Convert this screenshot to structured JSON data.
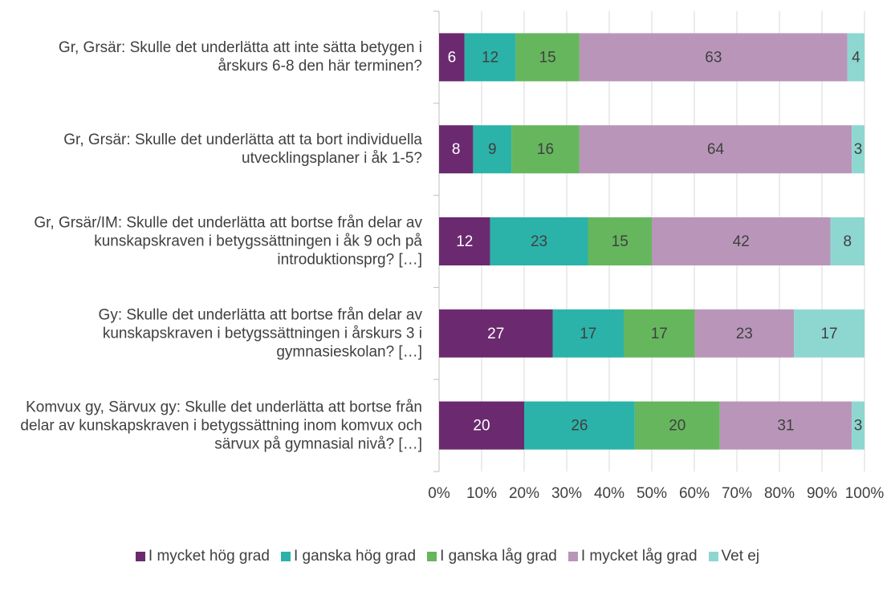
{
  "chart_data": {
    "type": "stacked_bar_horizontal",
    "categories": [
      "Gr, Grsär: Skulle det underlätta att inte sätta betygen i årskurs 6-8 den här terminen?",
      "Gr, Grsär: Skulle det underlätta att ta bort individuella utvecklingsplaner i åk 1-5?",
      "Gr, Grsär/IM: Skulle det underlätta att bortse från delar av kunskapskraven i betygssättningen i åk 9 och på introduktionsprg? […]",
      "Gy: Skulle det underlätta att bortse från delar av kunskapskraven i betygssättningen i årskurs 3 i gymnasieskolan? […]",
      "Komvux gy, Särvux gy: Skulle det underlätta att bortse från delar av kunskapskraven i betygssättning inom komvux och särvux på gymnasial nivå? […]"
    ],
    "series": [
      {
        "name": "I mycket hög grad",
        "color": "#6b2a6f",
        "values": [
          6,
          8,
          12,
          26.7,
          20
        ],
        "value_labels": [
          "6",
          "8",
          "12",
          "27",
          "20"
        ]
      },
      {
        "name": "I ganska hög grad",
        "color": "#2bb3a9",
        "values": [
          12,
          9,
          23,
          16.7,
          26
        ],
        "value_labels": [
          "12",
          "9",
          "23",
          "17",
          "26"
        ]
      },
      {
        "name": "I ganska låg grad",
        "color": "#66b65e",
        "values": [
          15,
          16,
          15,
          16.7,
          20
        ],
        "value_labels": [
          "15",
          "16",
          "15",
          "17",
          "20"
        ]
      },
      {
        "name": "I mycket låg grad",
        "color": "#b996b9",
        "values": [
          63,
          64,
          42,
          23.3,
          31
        ],
        "value_labels": [
          "63",
          "64",
          "42",
          "23",
          "31"
        ]
      },
      {
        "name": "Vet ej",
        "color": "#8ed7d1",
        "values": [
          4,
          3,
          8,
          16.6,
          3
        ],
        "value_labels": [
          "4",
          "3",
          "8",
          "17",
          "3"
        ]
      }
    ],
    "xlim": [
      0,
      100
    ],
    "xticks": [
      {
        "value": 0,
        "label": "0%"
      },
      {
        "value": 10,
        "label": "10%"
      },
      {
        "value": 20,
        "label": "20%"
      },
      {
        "value": 30,
        "label": "30%"
      },
      {
        "value": 40,
        "label": "40%"
      },
      {
        "value": 50,
        "label": "50%"
      },
      {
        "value": 60,
        "label": "60%"
      },
      {
        "value": 70,
        "label": "70%"
      },
      {
        "value": 80,
        "label": "80%"
      },
      {
        "value": 90,
        "label": "90%"
      },
      {
        "value": 100,
        "label": "100%"
      }
    ],
    "grid": true,
    "legend": "bottom"
  }
}
